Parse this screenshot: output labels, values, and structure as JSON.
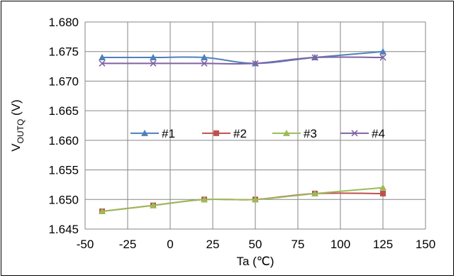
{
  "chart_data": {
    "type": "line",
    "x": [
      -40,
      -10,
      20,
      50,
      85,
      125
    ],
    "xlim": [
      -50,
      150
    ],
    "ylim": [
      1.645,
      1.68
    ],
    "x_ticks": [
      "-50",
      "-25",
      "0",
      "25",
      "50",
      "75",
      "100",
      "125",
      "150"
    ],
    "y_ticks": [
      "1.645",
      "1.650",
      "1.655",
      "1.660",
      "1.665",
      "1.670",
      "1.675",
      "1.680"
    ],
    "xlabel": "Ta (℃)",
    "ylabel_main": "V",
    "ylabel_sub": "OUTQ",
    "ylabel_unit": " (V)",
    "grid": true,
    "legend_position": "center",
    "series": [
      {
        "name": "#1",
        "color": "#4f81bd",
        "marker": "triangle",
        "values": [
          1.674,
          1.674,
          1.674,
          1.673,
          1.674,
          1.675
        ]
      },
      {
        "name": "#2",
        "color": "#c0504d",
        "marker": "square",
        "values": [
          1.648,
          1.649,
          1.65,
          1.65,
          1.651,
          1.651
        ]
      },
      {
        "name": "#3",
        "color": "#9bbb59",
        "marker": "triangle",
        "values": [
          1.648,
          1.649,
          1.65,
          1.65,
          1.651,
          1.652
        ]
      },
      {
        "name": "#4",
        "color": "#8064a2",
        "marker": "x",
        "values": [
          1.673,
          1.673,
          1.673,
          1.673,
          1.674,
          1.674
        ]
      }
    ]
  }
}
